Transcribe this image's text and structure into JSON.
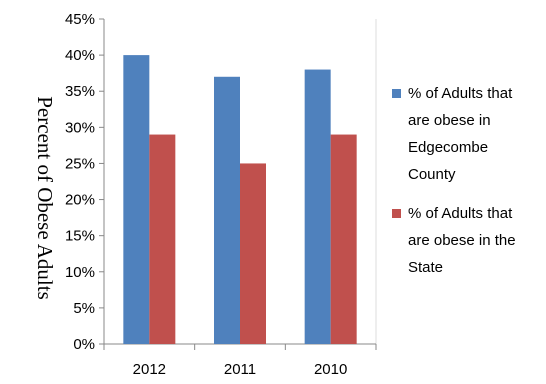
{
  "chart_data": {
    "type": "bar",
    "categories": [
      "2012",
      "2011",
      "2010"
    ],
    "series": [
      {
        "name": "% of Adults that are obese in Edgecombe County",
        "legend_lines": [
          "% of Adults that",
          "are obese in",
          "Edgecombe",
          "County"
        ],
        "color": "#4F81BD",
        "values": [
          40,
          37,
          38
        ]
      },
      {
        "name": "% of Adults that are obese in the State",
        "legend_lines": [
          "% of Adults that",
          "are obese in the",
          "State"
        ],
        "color": "#C0504D",
        "values": [
          29,
          25,
          29
        ]
      }
    ],
    "title": "",
    "xlabel": "",
    "ylabel": "Percent of Obese Adults",
    "ylim": [
      0,
      45
    ],
    "yticks": [
      "0%",
      "5%",
      "10%",
      "15%",
      "20%",
      "25%",
      "30%",
      "35%",
      "40%",
      "45%"
    ],
    "grid": false,
    "legend_position": "right"
  }
}
